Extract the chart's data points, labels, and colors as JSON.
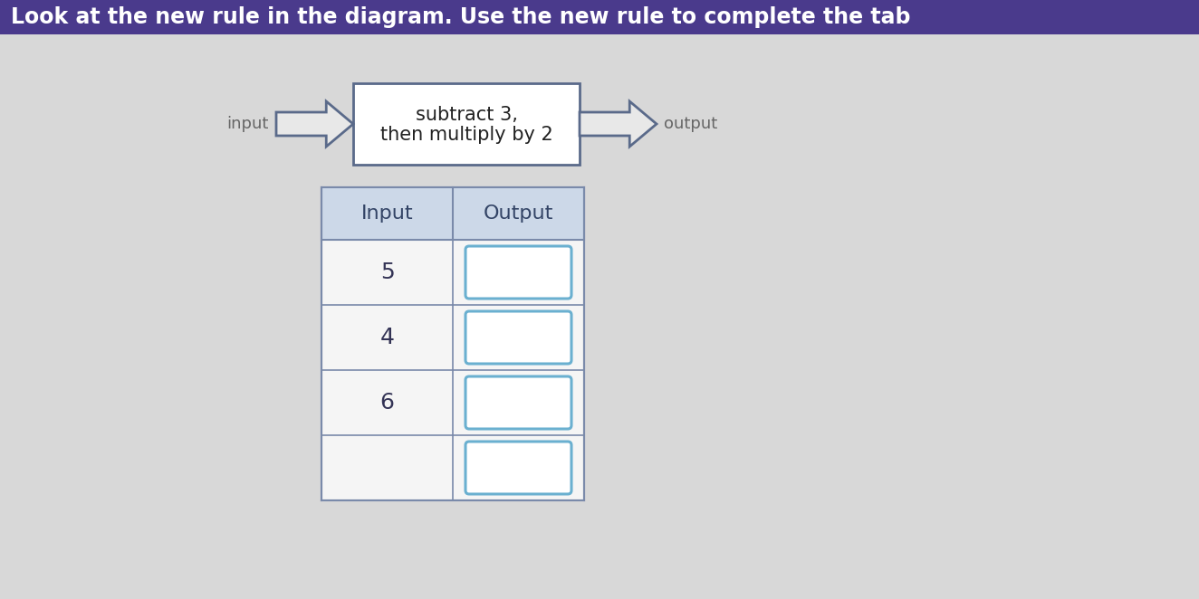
{
  "title": "Look at the new rule in the diagram. Use the new rule to complete the tab",
  "title_bg": "#4a3a8c",
  "title_color": "#ffffff",
  "title_fontsize": 17,
  "bg_color": "#d8d8d8",
  "rule_text_line1": "subtract 3,",
  "rule_text_line2": "then multiply by 2",
  "rule_box_facecolor": "#ffffff",
  "rule_box_edge": "#5a6a8a",
  "input_label": "input",
  "output_label": "output",
  "arrow_face": "#e8e8e8",
  "arrow_edge": "#5a6a8a",
  "label_color": "#666666",
  "table_header_bg": "#ccd8e8",
  "table_cell_bg": "#f5f5f5",
  "table_border": "#7a8aaa",
  "col_headers": [
    "Input",
    "Output"
  ],
  "inputs": [
    "5",
    "4",
    "6",
    ""
  ],
  "output_box_color": "#6ab0d0",
  "output_box_face": "#ffffff",
  "figsize": [
    13.24,
    6.62
  ],
  "dpi": 100
}
